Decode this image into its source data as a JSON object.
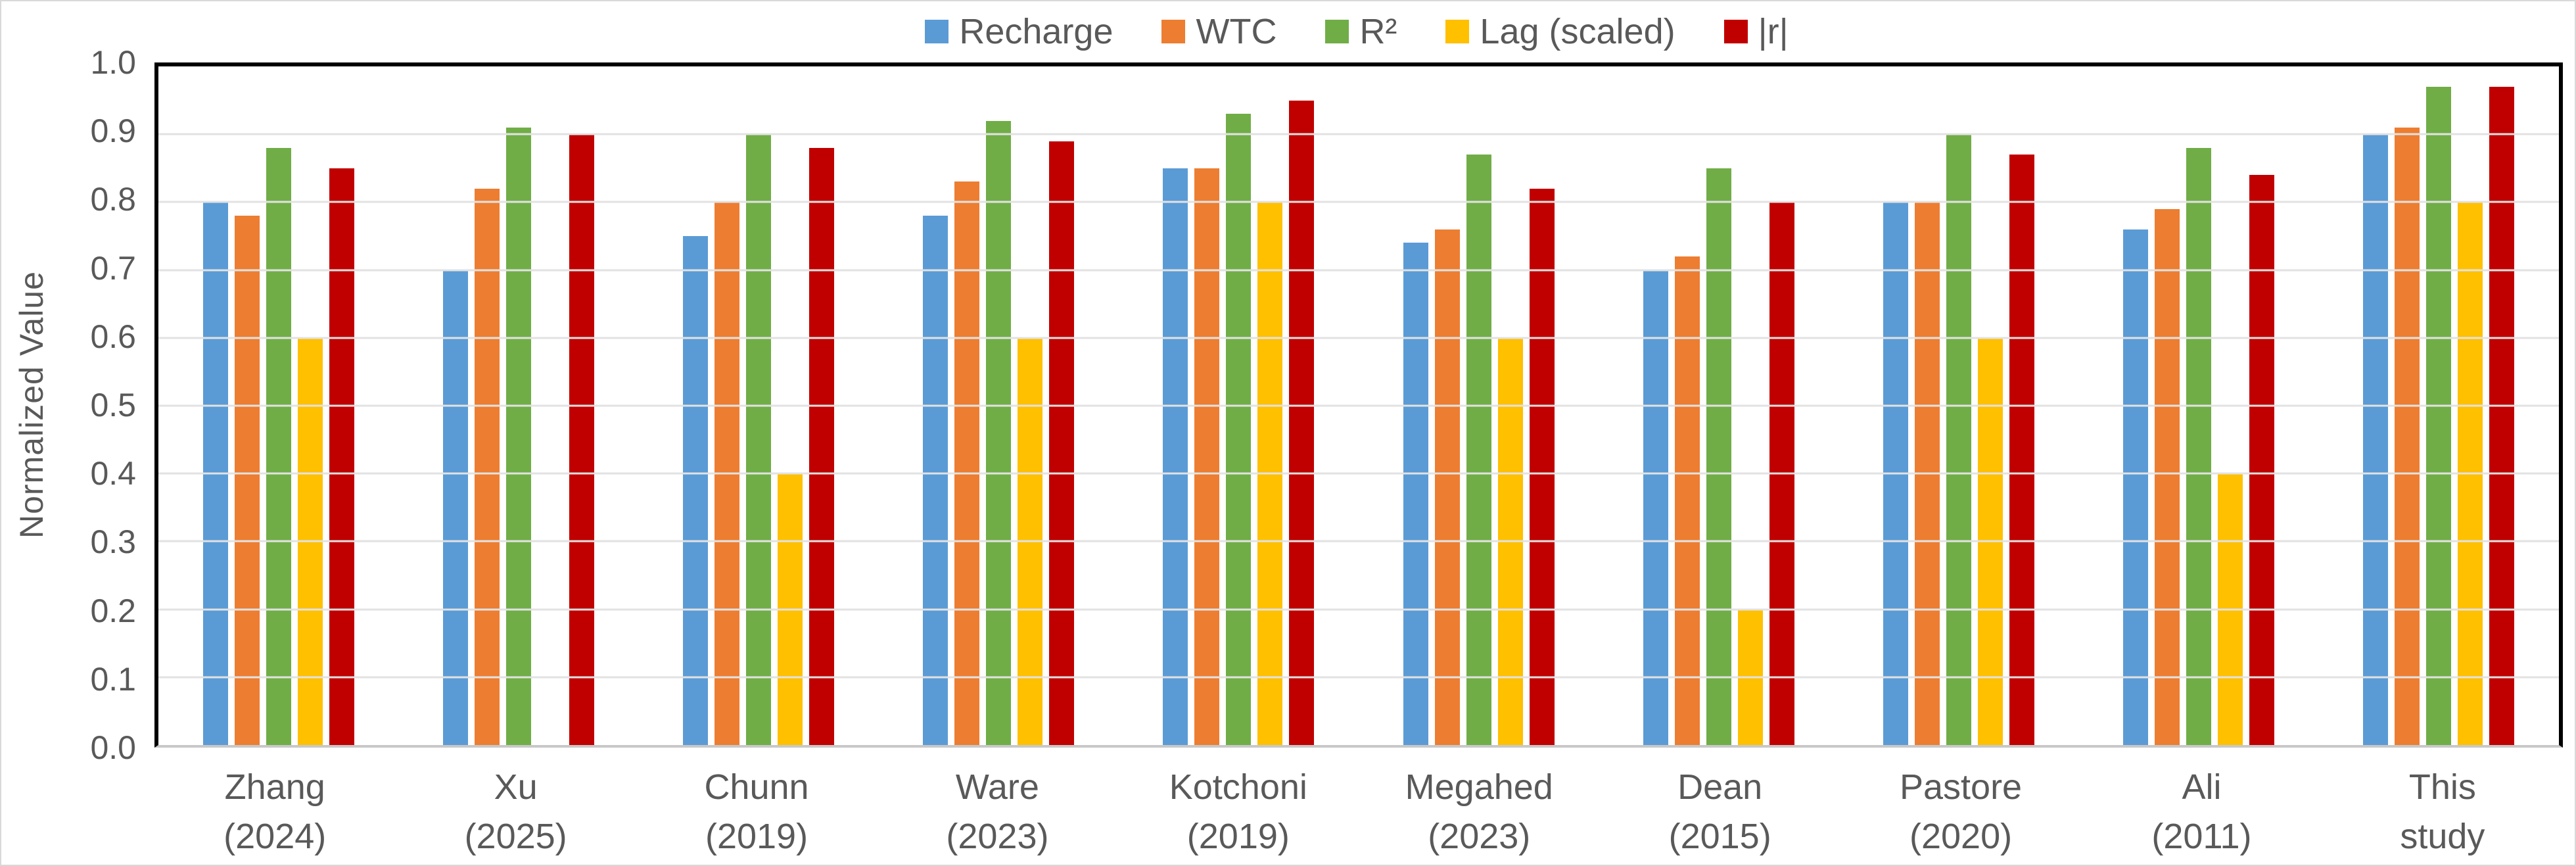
{
  "chart_data": {
    "type": "bar",
    "title": "",
    "xlabel": "",
    "ylabel": "Normalized Value",
    "ylim": [
      0.0,
      1.0
    ],
    "ytick_step": 0.1,
    "yticks": [
      "1.0",
      "0.9",
      "0.8",
      "0.7",
      "0.6",
      "0.5",
      "0.4",
      "0.3",
      "0.2",
      "0.1",
      "0.0"
    ],
    "grid": true,
    "legend_position": "top-center",
    "axis_color": "#000000",
    "gridline_color": "#e2e2e2",
    "text_color": "#595959",
    "categories": [
      {
        "line1": "Zhang",
        "line2": "(2024)"
      },
      {
        "line1": "Xu",
        "line2": "(2025)"
      },
      {
        "line1": "Chunn",
        "line2": "(2019)"
      },
      {
        "line1": "Ware",
        "line2": "(2023)"
      },
      {
        "line1": "Kotchoni",
        "line2": "(2019)"
      },
      {
        "line1": "Megahed",
        "line2": "(2023)"
      },
      {
        "line1": "Dean",
        "line2": "(2015)"
      },
      {
        "line1": "Pastore",
        "line2": "(2020)"
      },
      {
        "line1": "Ali",
        "line2": "(2011)"
      },
      {
        "line1": "This",
        "line2": "study"
      }
    ],
    "series": [
      {
        "name": "Recharge",
        "color": "#5B9BD5",
        "values": [
          0.8,
          0.7,
          0.75,
          0.78,
          0.85,
          0.74,
          0.7,
          0.8,
          0.76,
          0.9
        ]
      },
      {
        "name": "WTC",
        "color": "#ED7D31",
        "values": [
          0.78,
          0.82,
          0.8,
          0.83,
          0.85,
          0.76,
          0.72,
          0.8,
          0.79,
          0.91
        ]
      },
      {
        "name": "R²",
        "color": "#70AD47",
        "values": [
          0.88,
          0.91,
          0.9,
          0.92,
          0.93,
          0.87,
          0.85,
          0.9,
          0.88,
          0.97
        ]
      },
      {
        "name": "Lag (scaled)",
        "color": "#FFC000",
        "values": [
          0.6,
          0.0,
          0.4,
          0.6,
          0.8,
          0.6,
          0.2,
          0.6,
          0.4,
          0.8
        ]
      },
      {
        "name": "|r|",
        "color": "#C00000",
        "values": [
          0.85,
          0.9,
          0.88,
          0.89,
          0.95,
          0.82,
          0.8,
          0.87,
          0.84,
          0.97
        ]
      }
    ]
  }
}
